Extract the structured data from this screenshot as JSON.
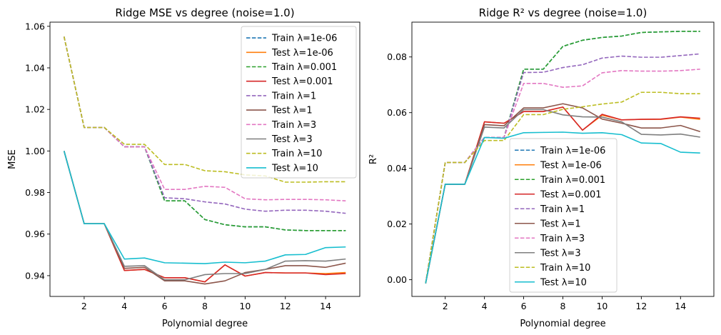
{
  "figure": {
    "colors": {
      "blue": "#1f77b4",
      "orange": "#ff7f0e",
      "green": "#2ca02c",
      "red": "#d62728",
      "purple": "#9467bd",
      "brown": "#8c564b",
      "pink": "#e377c2",
      "gray": "#7f7f7f",
      "olive": "#bcbd22",
      "cyan": "#17becf"
    }
  },
  "chart_data": [
    {
      "type": "line",
      "title": "Ridge MSE vs degree (noise=1.0)",
      "xlabel": "Polynomial degree",
      "ylabel": "MSE",
      "xlim": [
        0.3,
        15.7
      ],
      "ylim": [
        0.93,
        1.062
      ],
      "xticks": [
        2,
        4,
        6,
        8,
        10,
        12,
        14
      ],
      "xtick_labels": [
        "2",
        "4",
        "6",
        "8",
        "10",
        "12",
        "14"
      ],
      "yticks": [
        0.94,
        0.96,
        0.98,
        1.0,
        1.02,
        1.04,
        1.06
      ],
      "ytick_labels": [
        "0.94",
        "0.96",
        "0.98",
        "1.00",
        "1.02",
        "1.04",
        "1.06"
      ],
      "legend_position": "upper right",
      "x": [
        1,
        2,
        3,
        4,
        5,
        6,
        7,
        8,
        9,
        10,
        11,
        12,
        13,
        14,
        15
      ],
      "series": [
        {
          "name": "Train λ=1e-06",
          "color": "blue",
          "dashed": true,
          "values": [
            1.055,
            1.0113,
            1.0113,
            1.002,
            1.002,
            0.976,
            0.976,
            0.967,
            0.9645,
            0.9635,
            0.9635,
            0.962,
            0.9617,
            0.9617,
            0.9617
          ]
        },
        {
          "name": "Test λ=1e-06",
          "color": "orange",
          "dashed": false,
          "values": [
            1.0,
            0.965,
            0.965,
            0.9425,
            0.943,
            0.939,
            0.939,
            0.937,
            0.9452,
            0.9398,
            0.9415,
            0.9413,
            0.9413,
            0.941,
            0.9415
          ]
        },
        {
          "name": "Train λ=0.001",
          "color": "green",
          "dashed": true,
          "values": [
            1.055,
            1.0113,
            1.0113,
            1.002,
            1.002,
            0.976,
            0.976,
            0.967,
            0.9645,
            0.9635,
            0.9635,
            0.962,
            0.9617,
            0.9617,
            0.9617
          ]
        },
        {
          "name": "Test λ=0.001",
          "color": "red",
          "dashed": false,
          "values": [
            1.0,
            0.965,
            0.965,
            0.9425,
            0.943,
            0.939,
            0.939,
            0.937,
            0.9452,
            0.9398,
            0.9415,
            0.9413,
            0.9413,
            0.9405,
            0.941
          ]
        },
        {
          "name": "Train λ=1",
          "color": "purple",
          "dashed": true,
          "values": [
            1.055,
            1.0113,
            1.0113,
            1.002,
            1.002,
            0.9775,
            0.977,
            0.9755,
            0.9745,
            0.972,
            0.971,
            0.9715,
            0.9715,
            0.971,
            0.97
          ]
        },
        {
          "name": "Test λ=1",
          "color": "brown",
          "dashed": false,
          "values": [
            1.0,
            0.965,
            0.965,
            0.9435,
            0.944,
            0.9375,
            0.9375,
            0.936,
            0.9375,
            0.9415,
            0.943,
            0.9448,
            0.9448,
            0.944,
            0.946
          ]
        },
        {
          "name": "Train λ=3",
          "color": "pink",
          "dashed": true,
          "values": [
            1.055,
            1.0113,
            1.0113,
            1.002,
            1.002,
            0.9815,
            0.9815,
            0.983,
            0.9825,
            0.977,
            0.9765,
            0.9767,
            0.9767,
            0.9765,
            0.976
          ]
        },
        {
          "name": "Test λ=3",
          "color": "gray",
          "dashed": false,
          "values": [
            1.0,
            0.965,
            0.965,
            0.9445,
            0.9448,
            0.938,
            0.938,
            0.9405,
            0.941,
            0.941,
            0.943,
            0.947,
            0.9472,
            0.947,
            0.948
          ]
        },
        {
          "name": "Train λ=10",
          "color": "olive",
          "dashed": true,
          "values": [
            1.055,
            1.0113,
            1.0113,
            1.0032,
            1.0032,
            0.9935,
            0.9935,
            0.9905,
            0.99,
            0.9885,
            0.988,
            0.985,
            0.985,
            0.9852,
            0.9852
          ]
        },
        {
          "name": "Test λ=10",
          "color": "cyan",
          "dashed": false,
          "values": [
            1.0,
            0.965,
            0.965,
            0.948,
            0.9485,
            0.9462,
            0.946,
            0.9458,
            0.9465,
            0.9462,
            0.947,
            0.95,
            0.9502,
            0.9535,
            0.9538
          ]
        }
      ]
    },
    {
      "type": "line",
      "title": "Ridge R² vs degree (noise=1.0)",
      "xlabel": "Polynomial degree",
      "ylabel": "R²",
      "xlim": [
        0.3,
        15.7
      ],
      "ylim": [
        -0.006,
        0.0925
      ],
      "xticks": [
        2,
        4,
        6,
        8,
        10,
        12,
        14
      ],
      "xtick_labels": [
        "2",
        "4",
        "6",
        "8",
        "10",
        "12",
        "14"
      ],
      "yticks": [
        0.0,
        0.02,
        0.04,
        0.06,
        0.08
      ],
      "ytick_labels": [
        "0.00",
        "0.02",
        "0.04",
        "0.06",
        "0.08"
      ],
      "legend_position": "lower center",
      "x": [
        1,
        2,
        3,
        4,
        5,
        6,
        7,
        8,
        9,
        10,
        11,
        12,
        13,
        14,
        15
      ],
      "series": [
        {
          "name": "Train λ=1e-06",
          "color": "blue",
          "dashed": true,
          "values": [
            -0.0013,
            0.0421,
            0.0421,
            0.0511,
            0.0511,
            0.0756,
            0.0756,
            0.0838,
            0.086,
            0.087,
            0.0875,
            0.0888,
            0.089,
            0.0892,
            0.0892
          ]
        },
        {
          "name": "Test λ=1e-06",
          "color": "orange",
          "dashed": false,
          "values": [
            -0.0013,
            0.0343,
            0.0343,
            0.0567,
            0.0562,
            0.0604,
            0.0604,
            0.062,
            0.0537,
            0.0591,
            0.0574,
            0.0576,
            0.0576,
            0.0584,
            0.0576
          ]
        },
        {
          "name": "Train λ=0.001",
          "color": "green",
          "dashed": true,
          "values": [
            -0.0013,
            0.0421,
            0.0421,
            0.0511,
            0.0511,
            0.0756,
            0.0756,
            0.0838,
            0.086,
            0.087,
            0.0875,
            0.0888,
            0.089,
            0.0892,
            0.0892
          ]
        },
        {
          "name": "Test λ=0.001",
          "color": "red",
          "dashed": false,
          "values": [
            -0.0013,
            0.0343,
            0.0343,
            0.0567,
            0.0562,
            0.0604,
            0.0604,
            0.062,
            0.0537,
            0.0594,
            0.0574,
            0.0576,
            0.0577,
            0.0585,
            0.058
          ]
        },
        {
          "name": "Train λ=1",
          "color": "purple",
          "dashed": true,
          "values": [
            -0.0013,
            0.0421,
            0.0421,
            0.0511,
            0.0511,
            0.0744,
            0.0745,
            0.0762,
            0.0772,
            0.0796,
            0.0803,
            0.0799,
            0.0799,
            0.0805,
            0.0811
          ]
        },
        {
          "name": "Test λ=1",
          "color": "brown",
          "dashed": false,
          "values": [
            -0.0013,
            0.0343,
            0.0343,
            0.0557,
            0.0553,
            0.0617,
            0.0617,
            0.0632,
            0.0617,
            0.0577,
            0.0562,
            0.0545,
            0.0545,
            0.0554,
            0.0532
          ]
        },
        {
          "name": "Train λ=3",
          "color": "pink",
          "dashed": true,
          "values": [
            -0.0013,
            0.0421,
            0.0421,
            0.0511,
            0.0511,
            0.0705,
            0.0705,
            0.0691,
            0.0696,
            0.0743,
            0.0751,
            0.0749,
            0.0749,
            0.0751,
            0.0756
          ]
        },
        {
          "name": "Test λ=3",
          "color": "gray",
          "dashed": false,
          "values": [
            -0.0013,
            0.0343,
            0.0343,
            0.0548,
            0.0545,
            0.0611,
            0.0611,
            0.0592,
            0.0585,
            0.0584,
            0.0567,
            0.0522,
            0.052,
            0.0523,
            0.0512
          ]
        },
        {
          "name": "Train λ=10",
          "color": "olive",
          "dashed": true,
          "values": [
            -0.0013,
            0.0421,
            0.0421,
            0.05,
            0.05,
            0.0593,
            0.0593,
            0.0612,
            0.0621,
            0.0631,
            0.0638,
            0.0673,
            0.0673,
            0.0668,
            0.0668
          ]
        },
        {
          "name": "Test λ=10",
          "color": "cyan",
          "dashed": false,
          "values": [
            -0.0013,
            0.0343,
            0.0343,
            0.0511,
            0.0508,
            0.0528,
            0.0529,
            0.053,
            0.0526,
            0.0528,
            0.0521,
            0.0491,
            0.0489,
            0.0458,
            0.0455
          ]
        }
      ]
    }
  ]
}
